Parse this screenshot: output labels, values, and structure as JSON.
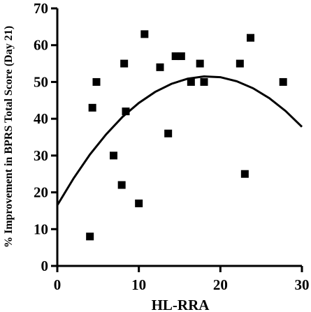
{
  "chart_data": {
    "type": "scatter",
    "title": "",
    "xlabel": "HL-RRA",
    "ylabel": "% Improvement in BPRS Total Score (Day 21)",
    "xlim": [
      0,
      30
    ],
    "ylim": [
      0,
      70
    ],
    "x_ticks": [
      0,
      10,
      20,
      30
    ],
    "y_ticks": [
      0,
      10,
      20,
      30,
      40,
      50,
      60,
      70
    ],
    "grid": false,
    "legend": "none",
    "marker_color": "#000000",
    "points": [
      {
        "x": 4.0,
        "y": 8
      },
      {
        "x": 4.3,
        "y": 43
      },
      {
        "x": 4.8,
        "y": 50
      },
      {
        "x": 6.9,
        "y": 30
      },
      {
        "x": 7.9,
        "y": 22
      },
      {
        "x": 8.2,
        "y": 55
      },
      {
        "x": 8.4,
        "y": 42
      },
      {
        "x": 10.0,
        "y": 17
      },
      {
        "x": 10.7,
        "y": 63
      },
      {
        "x": 12.6,
        "y": 54
      },
      {
        "x": 13.6,
        "y": 36
      },
      {
        "x": 14.5,
        "y": 57
      },
      {
        "x": 15.2,
        "y": 57
      },
      {
        "x": 16.4,
        "y": 50
      },
      {
        "x": 17.5,
        "y": 55
      },
      {
        "x": 18.0,
        "y": 50
      },
      {
        "x": 22.4,
        "y": 55
      },
      {
        "x": 23.0,
        "y": 25
      },
      {
        "x": 23.7,
        "y": 62
      },
      {
        "x": 27.7,
        "y": 50
      }
    ],
    "fit_curve": {
      "type": "quadratic",
      "x": [
        0,
        2,
        4,
        6,
        8,
        10,
        12,
        14,
        16,
        18,
        20,
        22,
        24,
        26,
        28,
        30
      ],
      "y": [
        16.5,
        23.8,
        30.3,
        35.8,
        40.5,
        44.3,
        47.3,
        49.5,
        50.9,
        51.5,
        51.3,
        50.2,
        48.3,
        45.6,
        42.1,
        37.8
      ]
    }
  }
}
